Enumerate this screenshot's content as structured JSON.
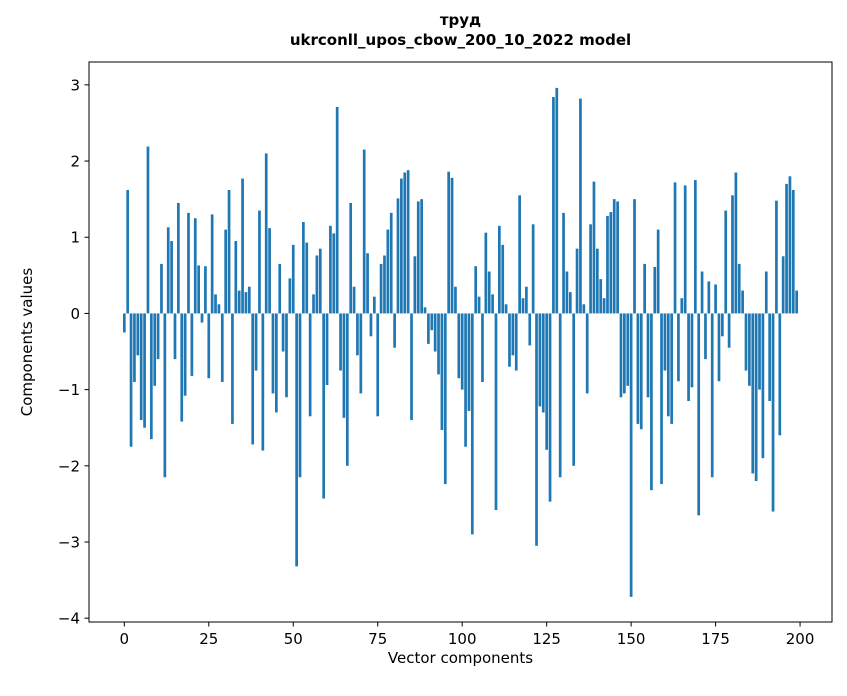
{
  "chart_data": {
    "type": "bar",
    "title": "труд",
    "subtitle": "ukrconll_upos_cbow_200_10_2022 model",
    "xlabel": "Vector components",
    "ylabel": "Components values",
    "bar_color": "#1f77b4",
    "grid": false,
    "legend_position": "none",
    "x_start": 0,
    "xlim": [
      -10.45,
      209.45
    ],
    "ylim": [
      -4.05,
      3.3
    ],
    "xticks": [
      0,
      25,
      50,
      75,
      100,
      125,
      150,
      175,
      200
    ],
    "xtick_labels": [
      "0",
      "25",
      "50",
      "75",
      "100",
      "125",
      "150",
      "175",
      "200"
    ],
    "yticks": [
      3,
      2,
      1,
      0,
      -1,
      -2,
      -3,
      -4
    ],
    "ytick_labels": [
      "3",
      "2",
      "1",
      "0",
      "−1",
      "−2",
      "−3",
      "−4"
    ],
    "values": [
      -0.25,
      1.62,
      -1.75,
      -0.9,
      -0.55,
      -1.4,
      -1.5,
      2.19,
      -1.65,
      -0.95,
      -0.6,
      0.65,
      -2.15,
      1.13,
      0.95,
      -0.6,
      1.45,
      -1.42,
      -1.08,
      1.32,
      -0.82,
      1.25,
      0.63,
      -0.12,
      0.62,
      -0.85,
      1.3,
      0.25,
      0.12,
      -0.9,
      1.1,
      1.62,
      -1.45,
      0.95,
      0.3,
      1.77,
      0.28,
      0.35,
      -1.72,
      -0.75,
      1.35,
      -1.8,
      2.1,
      1.12,
      -1.05,
      -1.3,
      0.65,
      -0.5,
      -1.1,
      0.46,
      0.9,
      -3.32,
      -2.15,
      1.2,
      0.93,
      -1.35,
      0.25,
      0.76,
      0.85,
      -2.43,
      -0.94,
      1.15,
      1.05,
      2.71,
      -0.75,
      -1.37,
      -2.0,
      1.45,
      0.35,
      -0.55,
      -1.05,
      2.15,
      0.79,
      -0.3,
      0.22,
      -1.35,
      0.65,
      0.76,
      1.1,
      1.32,
      -0.45,
      1.51,
      1.77,
      1.85,
      1.88,
      -1.4,
      0.75,
      1.47,
      1.5,
      0.08,
      -0.4,
      -0.22,
      -0.5,
      -0.8,
      -1.53,
      -2.24,
      1.86,
      1.78,
      0.35,
      -0.85,
      -1.0,
      -1.75,
      -1.28,
      -2.9,
      0.62,
      0.22,
      -0.9,
      1.06,
      0.55,
      0.25,
      -2.58,
      1.15,
      0.9,
      0.12,
      -0.7,
      -0.55,
      -0.75,
      1.55,
      0.2,
      0.35,
      -0.42,
      1.17,
      -3.05,
      -1.22,
      -1.3,
      -1.79,
      -2.47,
      2.84,
      2.96,
      -2.15,
      1.32,
      0.55,
      0.28,
      -2.0,
      0.85,
      2.82,
      0.12,
      -1.05,
      1.17,
      1.73,
      0.85,
      0.45,
      0.2,
      1.28,
      1.33,
      1.5,
      1.47,
      -1.1,
      -1.05,
      -0.95,
      -3.72,
      1.5,
      -1.45,
      -1.52,
      0.65,
      -1.1,
      -2.32,
      0.61,
      1.1,
      -2.24,
      -0.75,
      -1.35,
      -1.45,
      1.72,
      -0.89,
      0.2,
      1.68,
      -1.15,
      -0.97,
      1.75,
      -2.65,
      0.55,
      -0.6,
      0.42,
      -2.15,
      0.38,
      -0.89,
      -0.3,
      1.35,
      -0.45,
      1.55,
      1.85,
      0.65,
      0.3,
      -0.75,
      -0.95,
      -2.1,
      -2.2,
      -1.0,
      -1.9,
      0.55,
      -1.15,
      -2.6,
      1.48,
      -1.6,
      0.75,
      1.7,
      1.8,
      1.62,
      0.3
    ]
  }
}
